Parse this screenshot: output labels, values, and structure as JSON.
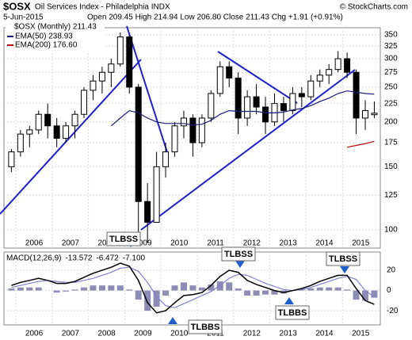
{
  "chart_data": [
    {
      "type": "candlestick",
      "title": "$OSX",
      "subtitle": "Oil Services Index - Philadelphia INDX",
      "credit": "© StockCharts.com",
      "date": "5-Jun-2015",
      "stats": "Open 209.45  High 214.94  Low 206.80  Close 211.43  Chg +1.91 (+0.91%)",
      "legend": "$OSX (Monthly) 211.43",
      "x": [
        2005.375,
        2005.625,
        2005.875,
        2006.125,
        2006.375,
        2006.625,
        2006.875,
        2007.125,
        2007.375,
        2007.625,
        2007.875,
        2008.125,
        2008.375,
        2008.625,
        2008.875,
        2009.125,
        2009.375,
        2009.625,
        2009.875,
        2010.125,
        2010.375,
        2010.625,
        2010.875,
        2011.125,
        2011.375,
        2011.625,
        2011.875,
        2012.125,
        2012.375,
        2012.625,
        2012.875,
        2013.125,
        2013.375,
        2013.625,
        2013.875,
        2014.125,
        2014.375,
        2014.625,
        2014.875,
        2015.125,
        2015.375
      ],
      "open": [
        150,
        165,
        185,
        190,
        210,
        195,
        180,
        195,
        210,
        245,
        260,
        275,
        290,
        345,
        250,
        120,
        105,
        150,
        165,
        195,
        205,
        175,
        205,
        240,
        285,
        265,
        205,
        235,
        220,
        200,
        225,
        215,
        240,
        235,
        260,
        270,
        280,
        300,
        275,
        205,
        209.45
      ],
      "high": [
        168,
        190,
        195,
        215,
        225,
        205,
        200,
        215,
        250,
        270,
        285,
        300,
        355,
        350,
        255,
        135,
        165,
        175,
        200,
        215,
        210,
        210,
        245,
        295,
        295,
        275,
        245,
        255,
        235,
        240,
        235,
        250,
        250,
        270,
        280,
        290,
        315,
        312,
        280,
        230,
        228
      ],
      "low": [
        145,
        160,
        170,
        185,
        180,
        170,
        175,
        180,
        205,
        230,
        240,
        250,
        285,
        240,
        95,
        92,
        105,
        140,
        160,
        180,
        160,
        170,
        200,
        235,
        250,
        185,
        195,
        210,
        185,
        195,
        200,
        210,
        220,
        230,
        250,
        255,
        275,
        265,
        185,
        190,
        205
      ],
      "close": [
        165,
        185,
        190,
        210,
        195,
        180,
        195,
        210,
        245,
        260,
        275,
        290,
        345,
        250,
        120,
        105,
        150,
        165,
        195,
        205,
        175,
        205,
        240,
        285,
        265,
        205,
        235,
        220,
        200,
        225,
        215,
        240,
        235,
        260,
        270,
        280,
        300,
        275,
        205,
        215,
        211.43
      ],
      "candle_color": "#000000",
      "series": [
        {
          "name": "EMA(50) 238.93",
          "color": "#1a1a7a",
          "values": [
            null,
            null,
            null,
            null,
            null,
            null,
            null,
            null,
            null,
            null,
            null,
            195,
            205,
            215,
            212,
            205,
            200,
            198,
            198,
            198,
            196,
            197,
            202,
            210,
            215,
            214,
            214,
            214,
            212,
            212,
            213,
            216,
            218,
            222,
            228,
            233,
            240,
            244,
            242,
            240,
            238.93
          ]
        },
        {
          "name": "EMA(200) 176.60",
          "color": "#c00000",
          "values": [
            null,
            null,
            null,
            null,
            null,
            null,
            null,
            null,
            null,
            null,
            null,
            null,
            null,
            null,
            null,
            null,
            null,
            null,
            null,
            null,
            null,
            null,
            null,
            null,
            null,
            null,
            null,
            null,
            null,
            null,
            null,
            null,
            null,
            null,
            null,
            null,
            null,
            170,
            172,
            174,
            176.6
          ]
        }
      ],
      "xlim": [
        2005.17,
        2015.54
      ],
      "xticks": [
        2006,
        2007,
        2008,
        2009,
        2010,
        2011,
        2012,
        2013,
        2014,
        2015
      ],
      "ylim": [
        89,
        366
      ],
      "log_scale": true,
      "yticks": [
        100,
        125,
        150,
        175,
        200,
        225,
        250,
        275,
        300,
        325,
        350
      ],
      "grid": true
    },
    {
      "type": "macd",
      "legend": [
        "MACD(12,26,9)",
        "-13.572",
        "-6.472",
        "-7.100"
      ],
      "macd": {
        "color": "#000000",
        "values": [
          5,
          8,
          10,
          12,
          10,
          7,
          7,
          9,
          13,
          17,
          20,
          23,
          27,
          24,
          10,
          -12,
          -22,
          -20,
          -12,
          -5,
          -4,
          -2,
          5,
          14,
          20,
          18,
          10,
          6,
          3,
          0,
          -2,
          0,
          2,
          5,
          9,
          12,
          15,
          15,
          2,
          -10,
          -13.572
        ]
      },
      "signal": {
        "color": "#8080d0",
        "values": [
          3,
          5,
          7,
          9,
          10,
          9,
          8,
          8,
          10,
          12,
          15,
          18,
          22,
          23,
          19,
          8,
          -6,
          -15,
          -17,
          -13,
          -9,
          -5,
          -1,
          5,
          12,
          16,
          15,
          11,
          7,
          4,
          1,
          0,
          1,
          3,
          6,
          9,
          12,
          14,
          11,
          0,
          -6.472
        ]
      },
      "histogram": {
        "color": "#8c8cb4",
        "values": [
          2,
          3,
          3,
          3,
          0,
          -2,
          -1,
          1,
          3,
          5,
          5,
          5,
          5,
          1,
          -9,
          -20,
          -16,
          -5,
          5,
          8,
          5,
          3,
          6,
          9,
          8,
          2,
          -5,
          -5,
          -4,
          -4,
          -3,
          0,
          1,
          2,
          3,
          3,
          3,
          1,
          -9,
          -10,
          -7.1
        ]
      },
      "xlim": [
        2005.17,
        2015.54
      ],
      "xticks": [
        2006,
        2007,
        2008,
        2009,
        2010,
        2011,
        2012,
        2013,
        2014,
        2015
      ],
      "ylim": [
        -34,
        38
      ],
      "yticks": [
        20,
        0,
        -20
      ],
      "grid": true,
      "annotations": [
        "TLBSS",
        "TLBBS",
        "TLBSS",
        "TLBBS",
        "TLBSS"
      ]
    }
  ]
}
